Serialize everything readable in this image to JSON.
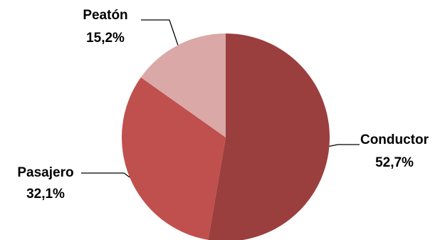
{
  "chart_data": {
    "type": "pie",
    "title": "",
    "legend": "none",
    "slices": [
      {
        "label": "Conductor",
        "value": 52.7,
        "value_label": "52,7%",
        "color": "#9b3f3e"
      },
      {
        "label": "Pasajero",
        "value": 32.1,
        "value_label": "32,1%",
        "color": "#c0504d"
      },
      {
        "label": "Peatón",
        "value": 15.2,
        "value_label": "15,2%",
        "color": "#d9a8a7"
      }
    ]
  }
}
